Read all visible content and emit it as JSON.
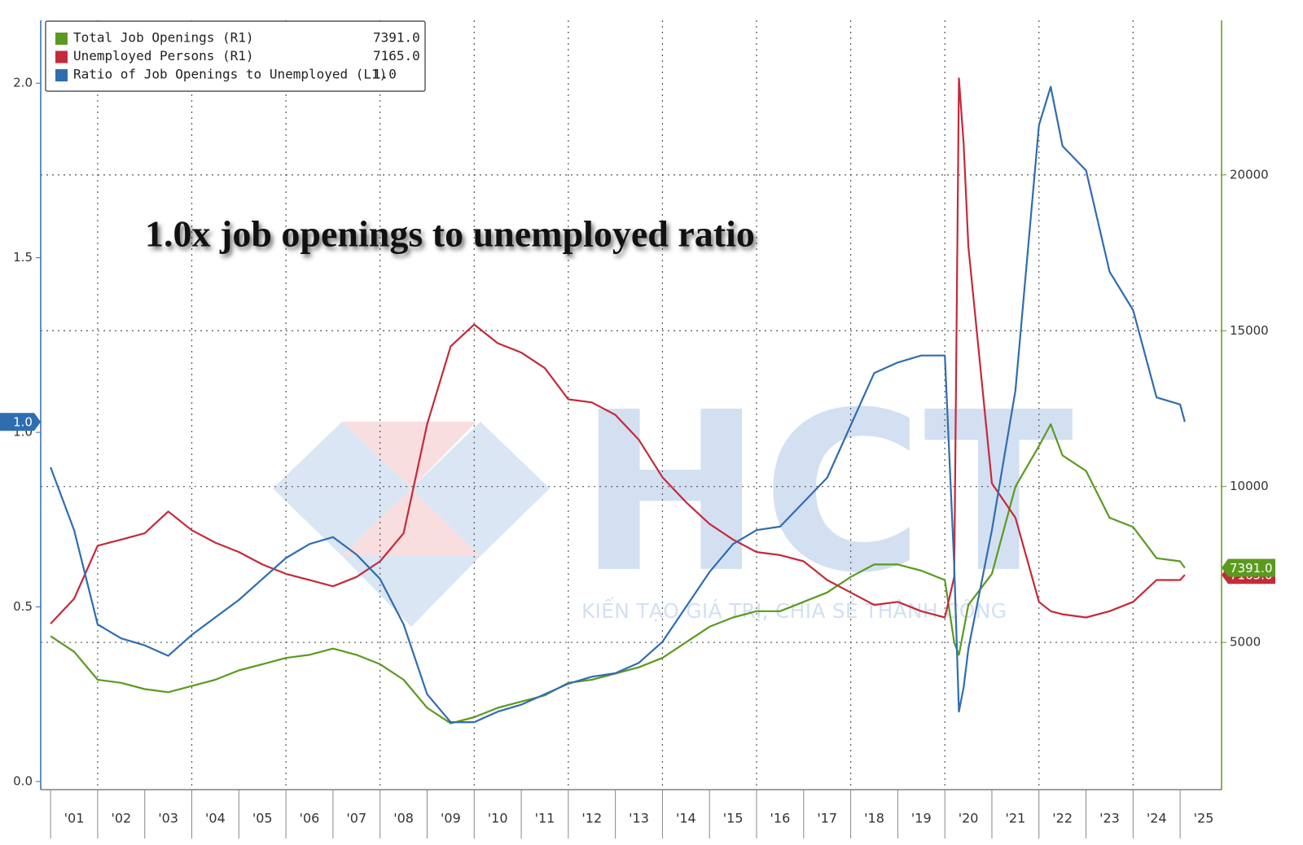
{
  "chart_data": {
    "type": "line",
    "annotation": "1.0x job openings to unemployed ratio",
    "watermark": {
      "logo": "HCT",
      "tagline": "KIẾN TẠO GIÁ TRỊ, CHIA SẺ THÀNH CÔNG"
    },
    "x": [
      2001.0,
      2001.5,
      2002.0,
      2002.5,
      2003.0,
      2003.5,
      2004.0,
      2004.5,
      2005.0,
      2005.5,
      2006.0,
      2006.5,
      2007.0,
      2007.5,
      2008.0,
      2008.5,
      2009.0,
      2009.5,
      2010.0,
      2010.5,
      2011.0,
      2011.5,
      2012.0,
      2012.5,
      2013.0,
      2013.5,
      2014.0,
      2014.5,
      2015.0,
      2015.5,
      2016.0,
      2016.5,
      2017.0,
      2017.5,
      2018.0,
      2018.5,
      2019.0,
      2019.5,
      2020.0,
      2020.2,
      2020.3,
      2020.4,
      2020.5,
      2021.0,
      2021.5,
      2022.0,
      2022.25,
      2022.5,
      2023.0,
      2023.5,
      2024.0,
      2024.5,
      2025.0,
      2025.1
    ],
    "series": [
      {
        "name": "Total Job Openings (R1)",
        "legend_value": "7391.0",
        "color": "#5b9a1f",
        "axis": "y2",
        "values": [
          5200,
          4700,
          3800,
          3700,
          3500,
          3400,
          3600,
          3800,
          4100,
          4300,
          4500,
          4600,
          4800,
          4600,
          4300,
          3800,
          2900,
          2400,
          2600,
          2900,
          3100,
          3300,
          3700,
          3800,
          4000,
          4200,
          4500,
          5000,
          5500,
          5800,
          6000,
          6000,
          6300,
          6600,
          7100,
          7500,
          7500,
          7300,
          7000,
          5000,
          4600,
          5400,
          6200,
          7200,
          10000,
          11300,
          12000,
          11000,
          10500,
          9000,
          8700,
          7700,
          7600,
          7391
        ]
      },
      {
        "name": "Unemployed Persons (R1)",
        "legend_value": "7165.0",
        "color": "#c42a3c",
        "axis": "y2",
        "values": [
          5600,
          6400,
          8100,
          8300,
          8500,
          9200,
          8600,
          8200,
          7900,
          7500,
          7200,
          7000,
          6800,
          7100,
          7600,
          8500,
          12000,
          14500,
          15200,
          14600,
          14300,
          13800,
          12800,
          12700,
          12300,
          11500,
          10300,
          9500,
          8800,
          8300,
          7900,
          7800,
          7600,
          7000,
          6600,
          6200,
          6300,
          6000,
          5800,
          7100,
          23100,
          21000,
          17700,
          10100,
          9000,
          6300,
          6000,
          5900,
          5800,
          6000,
          6300,
          7000,
          7000,
          7165
        ]
      },
      {
        "name": "Ratio of Job Openings to Unemployed (L1)",
        "legend_value": "1.0",
        "color": "#2f6db0",
        "axis": "y",
        "values": [
          0.9,
          0.72,
          0.45,
          0.41,
          0.39,
          0.36,
          0.42,
          0.47,
          0.52,
          0.58,
          0.64,
          0.68,
          0.7,
          0.65,
          0.58,
          0.45,
          0.25,
          0.17,
          0.17,
          0.2,
          0.22,
          0.25,
          0.28,
          0.3,
          0.31,
          0.34,
          0.4,
          0.5,
          0.6,
          0.68,
          0.72,
          0.73,
          0.8,
          0.87,
          1.02,
          1.17,
          1.2,
          1.22,
          1.22,
          0.62,
          0.2,
          0.27,
          0.38,
          0.72,
          1.12,
          1.88,
          1.99,
          1.82,
          1.75,
          1.46,
          1.35,
          1.1,
          1.08,
          1.03
        ]
      }
    ],
    "xlim": [
      2000.79,
      2025.88
    ],
    "xticks": [
      {
        "value": 2001,
        "label": "'01"
      },
      {
        "value": 2002,
        "label": "'02"
      },
      {
        "value": 2003,
        "label": "'03"
      },
      {
        "value": 2004,
        "label": "'04"
      },
      {
        "value": 2005,
        "label": "'05"
      },
      {
        "value": 2006,
        "label": "'06"
      },
      {
        "value": 2007,
        "label": "'07"
      },
      {
        "value": 2008,
        "label": "'08"
      },
      {
        "value": 2009,
        "label": "'09"
      },
      {
        "value": 2010,
        "label": "'10"
      },
      {
        "value": 2011,
        "label": "'11"
      },
      {
        "value": 2012,
        "label": "'12"
      },
      {
        "value": 2013,
        "label": "'13"
      },
      {
        "value": 2014,
        "label": "'14"
      },
      {
        "value": 2015,
        "label": "'15"
      },
      {
        "value": 2016,
        "label": "'16"
      },
      {
        "value": 2017,
        "label": "'17"
      },
      {
        "value": 2018,
        "label": "'18"
      },
      {
        "value": 2019,
        "label": "'19"
      },
      {
        "value": 2020,
        "label": "'20"
      },
      {
        "value": 2021,
        "label": "'21"
      },
      {
        "value": 2022,
        "label": "'22"
      },
      {
        "value": 2023,
        "label": "'23"
      },
      {
        "value": 2024,
        "label": "'24"
      },
      {
        "value": 2025,
        "label": "'25"
      }
    ],
    "ylim": [
      0,
      2.18
    ],
    "yticks": [
      {
        "value": 0,
        "label": "0.0"
      },
      0.5,
      {
        "value": 1,
        "label": "1.0"
      },
      1.5,
      {
        "value": 2,
        "label": "2.0"
      }
    ],
    "y2lim": [
      535,
      24960
    ],
    "y2ticks": [
      5000,
      10000,
      15000,
      20000
    ],
    "grid": true,
    "legend": "top-left"
  }
}
